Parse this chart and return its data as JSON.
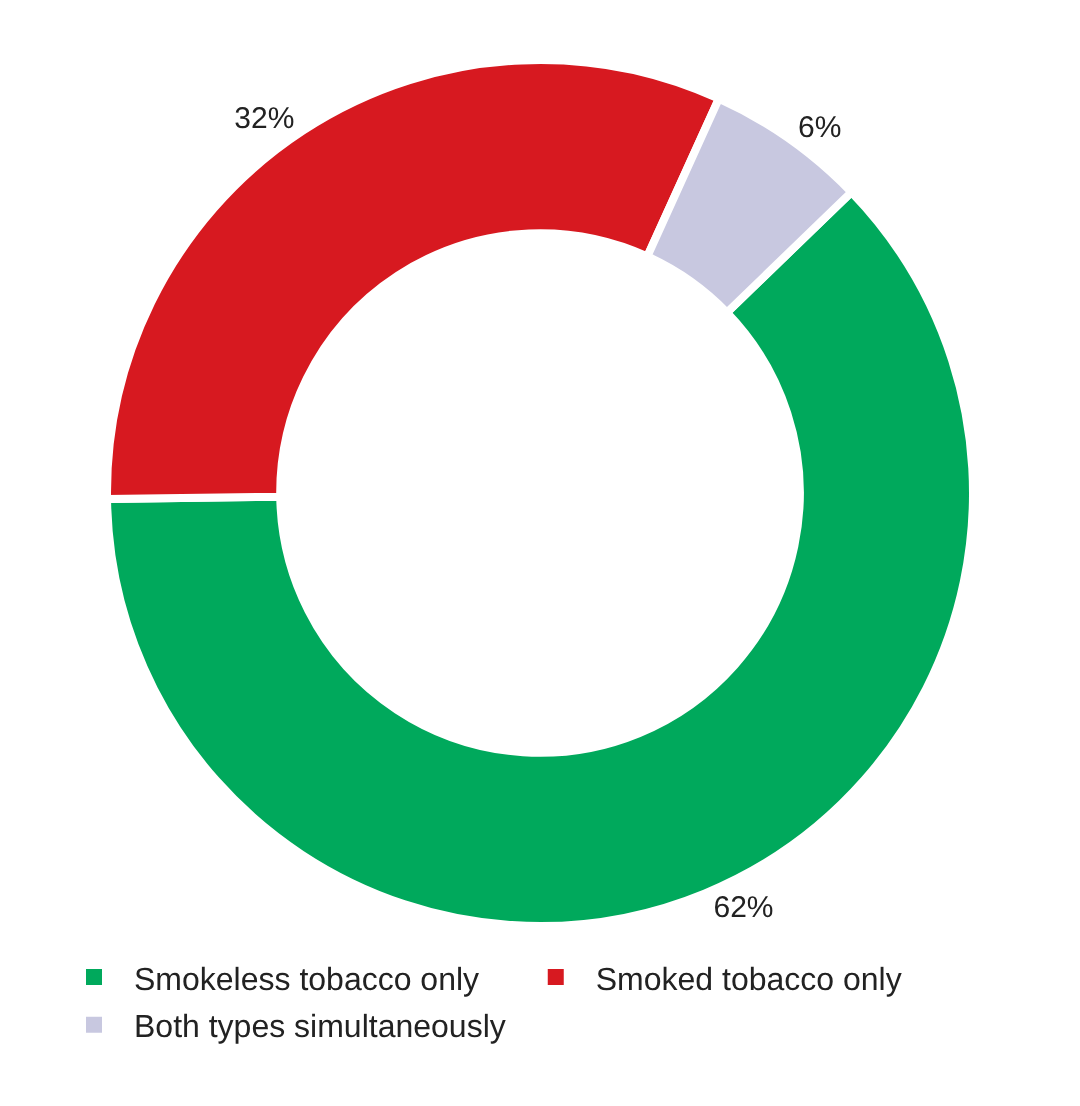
{
  "chart_data": {
    "type": "donut",
    "categories": [
      "Smokeless tobacco only",
      "Smoked tobacco only",
      "Both types simultaneously"
    ],
    "values": [
      62,
      32,
      6
    ],
    "colors": [
      "#00a95c",
      "#d71920",
      "#c8c8e0"
    ],
    "value_labels": [
      "62%",
      "32%",
      "6%"
    ],
    "legend": "bottom"
  }
}
